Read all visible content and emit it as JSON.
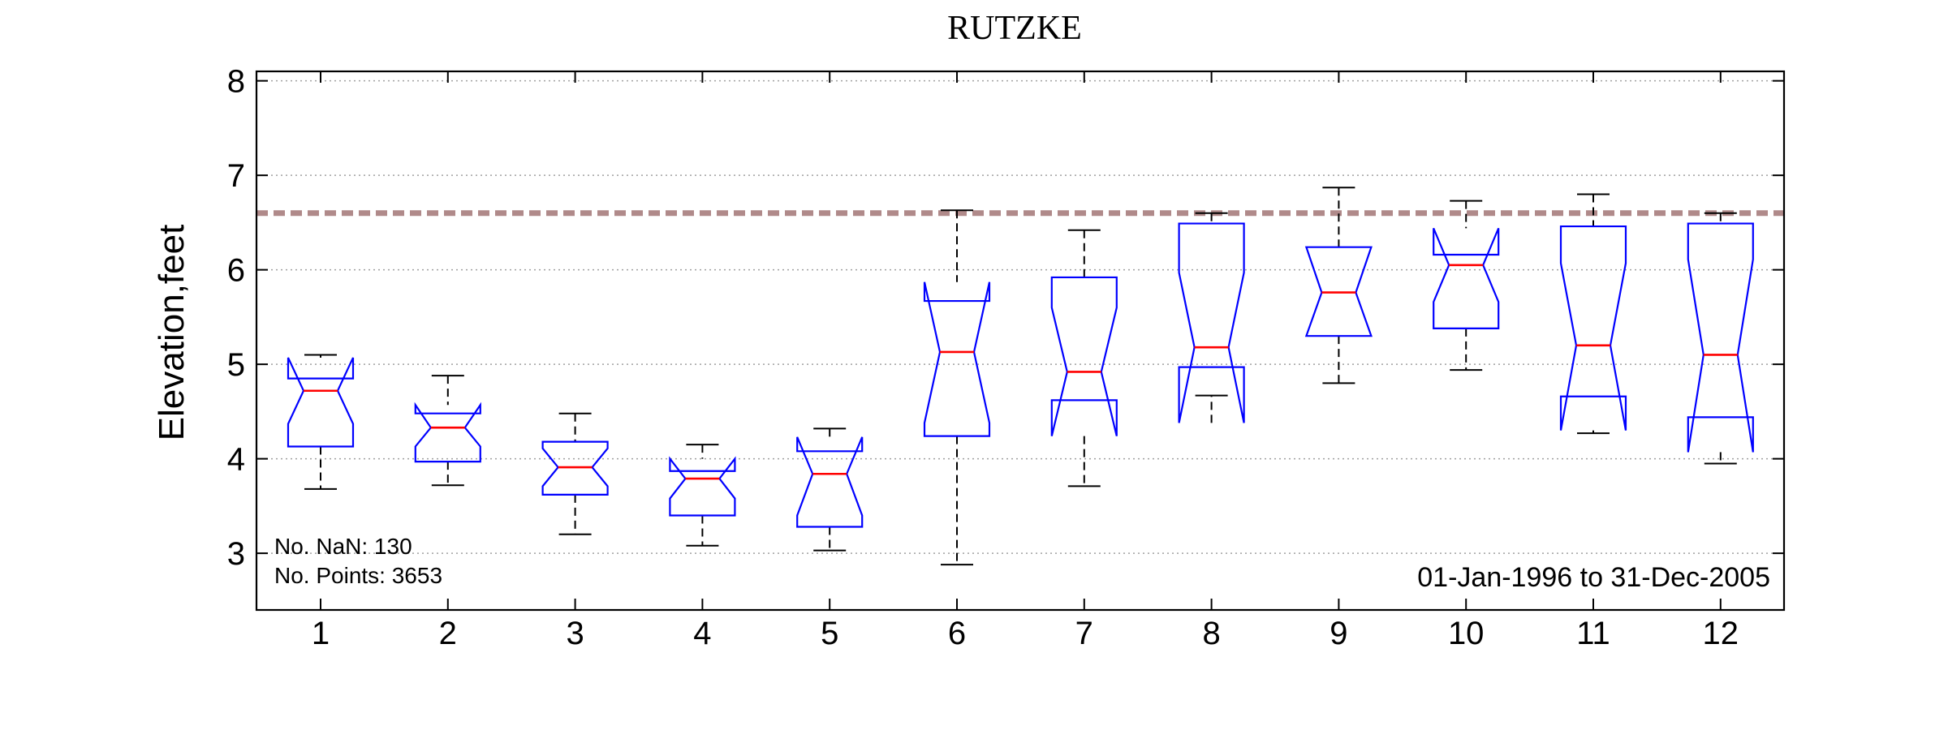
{
  "chart_data": {
    "type": "boxplot",
    "title": "RUTZKE",
    "xlabel": "",
    "ylabel": "Elevation,feet",
    "ylim": [
      2.4,
      8.1
    ],
    "yticks": [
      3,
      4,
      5,
      6,
      7,
      8
    ],
    "grid": true,
    "notched": true,
    "categories": [
      "1",
      "2",
      "3",
      "4",
      "5",
      "6",
      "7",
      "8",
      "9",
      "10",
      "11",
      "12"
    ],
    "boxes": [
      {
        "whisker_low": 3.68,
        "q1": 4.13,
        "median": 4.72,
        "q3": 4.85,
        "whisker_high": 5.1,
        "notch_low": 4.37,
        "notch_high": 5.07
      },
      {
        "whisker_low": 3.72,
        "q1": 3.97,
        "median": 4.33,
        "q3": 4.48,
        "whisker_high": 4.88,
        "notch_low": 4.13,
        "notch_high": 4.57
      },
      {
        "whisker_low": 3.2,
        "q1": 3.62,
        "median": 3.91,
        "q3": 4.18,
        "whisker_high": 4.48,
        "notch_low": 3.71,
        "notch_high": 4.11
      },
      {
        "whisker_low": 3.08,
        "q1": 3.4,
        "median": 3.79,
        "q3": 3.87,
        "whisker_high": 4.15,
        "notch_low": 3.58,
        "notch_high": 4.0
      },
      {
        "whisker_low": 3.03,
        "q1": 3.28,
        "median": 3.84,
        "q3": 4.08,
        "whisker_high": 4.32,
        "notch_low": 3.4,
        "notch_high": 4.23
      },
      {
        "whisker_low": 2.88,
        "q1": 4.24,
        "median": 5.13,
        "q3": 5.67,
        "whisker_high": 6.63,
        "notch_low": 4.38,
        "notch_high": 5.87
      },
      {
        "whisker_low": 3.71,
        "q1": 4.62,
        "median": 4.92,
        "q3": 5.92,
        "whisker_high": 6.42,
        "notch_low": 4.24,
        "notch_high": 5.6
      },
      {
        "whisker_low": 4.67,
        "q1": 4.97,
        "median": 5.18,
        "q3": 6.49,
        "whisker_high": 6.6,
        "notch_low": 4.38,
        "notch_high": 5.97
      },
      {
        "whisker_low": 4.8,
        "q1": 5.3,
        "median": 5.76,
        "q3": 6.24,
        "whisker_high": 6.87,
        "notch_low": 5.3,
        "notch_high": 6.24
      },
      {
        "whisker_low": 4.94,
        "q1": 5.38,
        "median": 6.05,
        "q3": 6.16,
        "whisker_high": 6.73,
        "notch_low": 5.66,
        "notch_high": 6.44
      },
      {
        "whisker_low": 4.27,
        "q1": 4.66,
        "median": 5.2,
        "q3": 6.46,
        "whisker_high": 6.8,
        "notch_low": 4.3,
        "notch_high": 6.07
      },
      {
        "whisker_low": 3.95,
        "q1": 4.44,
        "median": 5.1,
        "q3": 6.49,
        "whisker_high": 6.6,
        "notch_low": 4.07,
        "notch_high": 6.11
      }
    ],
    "reference_line": {
      "y": 6.6,
      "color": "#b08a8a",
      "style": "dashed"
    },
    "annotations": {
      "nan_count": "No. NaN: 130",
      "points_count": "No. Points: 3653",
      "date_range": "01-Jan-1996 to 31-Dec-2005"
    },
    "colors": {
      "box": "#0000ff",
      "median": "#ff0000",
      "whisker": "#000000",
      "grid": "#a0a0a0"
    }
  }
}
